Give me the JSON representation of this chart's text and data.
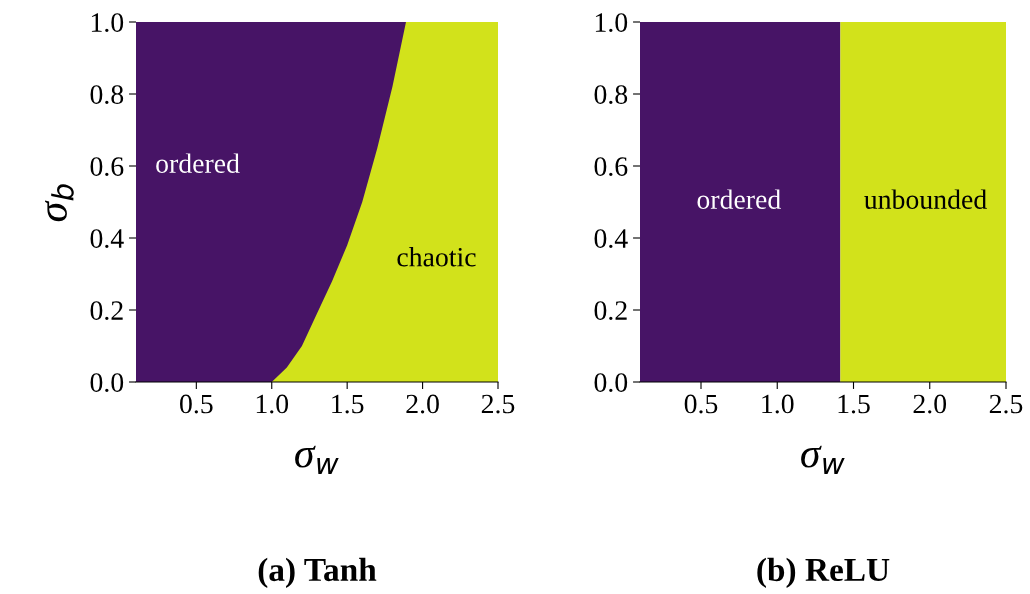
{
  "chart_data": [
    {
      "type": "area",
      "xlabel": "σ$_{w}$",
      "ylabel": "σ$_{b}$",
      "x": [
        1.0,
        1.1,
        1.2,
        1.3,
        1.4,
        1.5,
        1.6,
        1.7,
        1.8,
        1.89,
        2.5
      ],
      "series": [
        {
          "color": "#d2e21b",
          "values": [
            0,
            0.04,
            0.1,
            0.19,
            0.28,
            0.38,
            0.5,
            0.65,
            0.82,
            1.0,
            1.0
          ]
        }
      ],
      "bands": [
        {
          "axis": "x",
          "from": 0.1,
          "to": 2.5,
          "color": "#471466"
        }
      ],
      "xlim": [
        0.1,
        2.5
      ],
      "ylim": [
        0,
        1
      ],
      "xticks": [
        {
          "value": 0.5,
          "label": "0.5"
        },
        {
          "value": 1,
          "label": "1.0"
        },
        {
          "value": 1.5,
          "label": "1.5"
        },
        {
          "value": 2,
          "label": "2.0"
        },
        {
          "value": 2.5,
          "label": "2.5"
        }
      ],
      "yticks": [
        {
          "value": 0,
          "label": "0.0"
        },
        {
          "value": 0.2,
          "label": "0.2"
        },
        {
          "value": 0.4,
          "label": "0.4"
        },
        {
          "value": 0.6,
          "label": "0.6"
        },
        {
          "value": 0.8,
          "label": "0.8"
        },
        {
          "value": 1,
          "label": "1.0"
        }
      ],
      "annotations": [
        "ordered",
        "chaotic",
        "(a) Tanh"
      ]
    },
    {
      "type": "area",
      "xlabel": "σ$_{w}$",
      "x": [
        1.414,
        2.5
      ],
      "series": [
        {
          "color": "#d2e21b",
          "values": [
            1,
            1
          ]
        }
      ],
      "bands": [
        {
          "axis": "x",
          "from": 0.1,
          "to": 1.414,
          "color": "#471466"
        }
      ],
      "xlim": [
        0.1,
        2.5
      ],
      "ylim": [
        0,
        1
      ],
      "xticks": [
        {
          "value": 0.5,
          "label": "0.5"
        },
        {
          "value": 1,
          "label": "1.0"
        },
        {
          "value": 1.5,
          "label": "1.5"
        },
        {
          "value": 2,
          "label": "2.0"
        },
        {
          "value": 2.5,
          "label": "2.5"
        }
      ],
      "yticks": [
        {
          "value": 0,
          "label": "0.0"
        },
        {
          "value": 0.2,
          "label": "0.2"
        },
        {
          "value": 0.4,
          "label": "0.4"
        },
        {
          "value": 0.6,
          "label": "0.6"
        },
        {
          "value": 0.8,
          "label": "0.8"
        },
        {
          "value": 1,
          "label": "1.0"
        }
      ],
      "annotations": [
        "ordered",
        "unbounded",
        "(b) ReLU"
      ]
    }
  ]
}
